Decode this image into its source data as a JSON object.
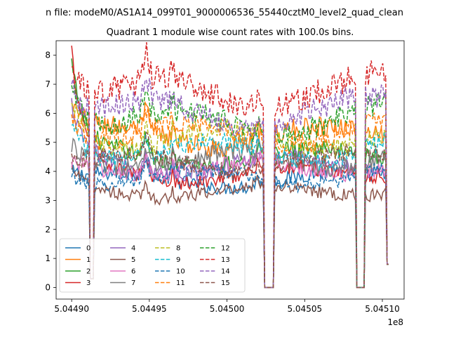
{
  "chart_data": {
    "type": "line",
    "suptitle": "n file: modeM0/AS1A14_099T01_9000006536_55440cztM0_level2_quad_clean",
    "title": "Quadrant 1 module wise count rates with 100.0s bins.",
    "xlabel": "",
    "ylabel": "",
    "x_offset_label": "1e8",
    "xlim": [
      5.04489,
      5.045114
    ],
    "ylim": [
      -0.4,
      8.5
    ],
    "xticks": [
      5.0449,
      5.04495,
      5.045,
      5.04505,
      5.0451
    ],
    "xtick_labels": [
      "5.04490",
      "5.04495",
      "5.04500",
      "5.04505",
      "5.04510"
    ],
    "yticks": [
      0,
      1,
      2,
      3,
      4,
      5,
      6,
      7,
      8
    ],
    "ytick_labels": [
      "0",
      "1",
      "2",
      "3",
      "4",
      "5",
      "6",
      "7",
      "8"
    ],
    "legend_location": "lower-left",
    "legend_columns": 4,
    "gaps": [
      [
        5.044912,
        5.044914,
        0.3
      ],
      [
        5.045024,
        5.04503,
        0.0
      ],
      [
        5.045083,
        5.045089,
        0.0
      ]
    ],
    "drops": [
      [
        5.045103,
        0.8
      ]
    ],
    "series": [
      {
        "name": "0",
        "color": "#1f77b4",
        "style": "solid",
        "level": 3.7,
        "start": 4.0
      },
      {
        "name": "1",
        "color": "#ff7f0e",
        "style": "solid",
        "level": 5.2,
        "start": 6.2
      },
      {
        "name": "2",
        "color": "#2ca02c",
        "style": "solid",
        "level": 4.5,
        "start": 7.5
      },
      {
        "name": "3",
        "color": "#d62728",
        "style": "solid",
        "level": 3.9,
        "start": 7.9
      },
      {
        "name": "4",
        "color": "#9467bd",
        "style": "solid",
        "level": 4.2,
        "start": 6.0
      },
      {
        "name": "5",
        "color": "#8c564b",
        "style": "solid",
        "level": 3.3,
        "start": 3.9
      },
      {
        "name": "6",
        "color": "#e377c2",
        "style": "solid",
        "level": 4.1,
        "start": 4.2
      },
      {
        "name": "7",
        "color": "#7f7f7f",
        "style": "solid",
        "level": 4.4,
        "start": 4.8
      },
      {
        "name": "8",
        "color": "#bcbd22",
        "style": "dashed",
        "level": 5.1,
        "start": 6.6
      },
      {
        "name": "9",
        "color": "#17becf",
        "style": "dashed",
        "level": 4.7,
        "start": 5.9
      },
      {
        "name": "10",
        "color": "#1f77b4",
        "style": "dashed",
        "level": 3.8,
        "start": 4.1
      },
      {
        "name": "11",
        "color": "#ff7f0e",
        "style": "dashed",
        "level": 5.3,
        "start": 6.4
      },
      {
        "name": "12",
        "color": "#2ca02c",
        "style": "dashed",
        "level": 5.7,
        "start": 7.4
      },
      {
        "name": "13",
        "color": "#d62728",
        "style": "dashed",
        "level": 6.7,
        "start": 8.0
      },
      {
        "name": "14",
        "color": "#9467bd",
        "style": "dashed",
        "level": 6.0,
        "start": 7.2
      },
      {
        "name": "15",
        "color": "#8c564b",
        "style": "dashed",
        "level": 4.3,
        "start": 4.6
      }
    ]
  }
}
